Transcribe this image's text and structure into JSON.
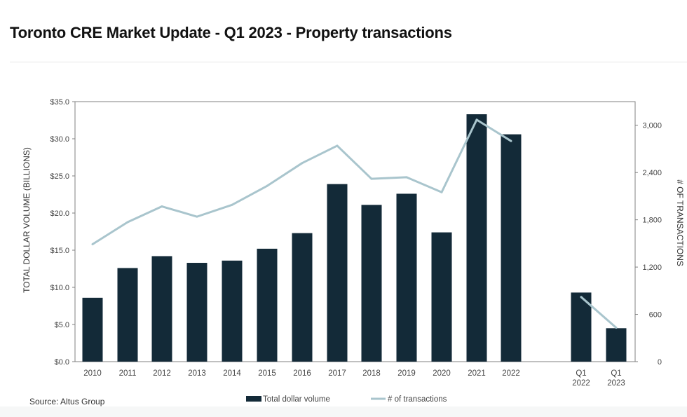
{
  "header": {
    "title": "Toronto CRE Market Update - Q1 2023 - Property transactions"
  },
  "source": "Source:  Altus Group",
  "colors": {
    "bar": "#132a38",
    "line": "#a9c5cd",
    "axis": "#808080"
  },
  "chart_data": {
    "type": "bar",
    "title": "",
    "categories": [
      "2010",
      "2011",
      "2012",
      "2013",
      "2014",
      "2015",
      "2016",
      "2017",
      "2018",
      "2019",
      "2020",
      "2021",
      "2022",
      "Q1\n2022",
      "Q1\n2023"
    ],
    "ylabel": "TOTAL DOLLAR VOLUME (BILLIONS)",
    "y2label": "# OF TRANSACTIONS",
    "ylim": [
      0,
      35
    ],
    "y2lim": [
      0,
      3300
    ],
    "yticks": [
      "$0.0",
      "$5.0",
      "$10.0",
      "$15.0",
      "$20.0",
      "$25.0",
      "$30.0",
      "$35.0"
    ],
    "y2ticks": [
      "0",
      "600",
      "1,200",
      "1,800",
      "2,400",
      "3,000"
    ],
    "grid": false,
    "legend_position": "bottom",
    "series": [
      {
        "name": "Total dollar volume",
        "type": "bar",
        "axis": "left",
        "values": [
          8.6,
          12.6,
          14.2,
          13.3,
          13.6,
          15.2,
          17.3,
          23.9,
          21.1,
          22.6,
          17.4,
          33.3,
          30.6,
          9.3,
          4.5
        ]
      },
      {
        "name": "# of transactions",
        "type": "line",
        "axis": "right",
        "values": [
          1490,
          1770,
          1970,
          1840,
          1990,
          2230,
          2520,
          2740,
          2320,
          2340,
          2150,
          3070,
          2800,
          820,
          430
        ]
      }
    ]
  }
}
